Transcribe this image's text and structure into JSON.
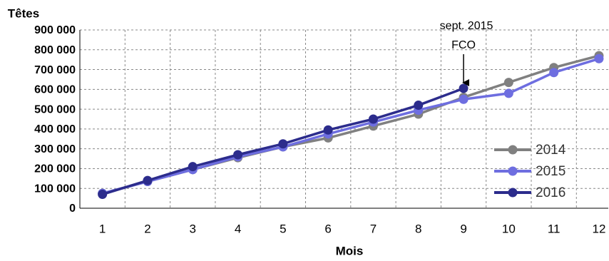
{
  "chart_data": {
    "type": "line",
    "title": "Têtes",
    "x_label": "Mois",
    "categories": [
      "1",
      "2",
      "3",
      "4",
      "5",
      "6",
      "7",
      "8",
      "9",
      "10",
      "11",
      "12"
    ],
    "series": [
      {
        "name": "2014",
        "color": "#808080",
        "values": [
          75000,
          135000,
          195000,
          255000,
          310000,
          355000,
          415000,
          475000,
          560000,
          635000,
          710000,
          770000
        ]
      },
      {
        "name": "2015",
        "color": "#6e6ee0",
        "values": [
          75000,
          135000,
          195000,
          260000,
          310000,
          375000,
          435000,
          495000,
          550000,
          580000,
          685000,
          755000
        ]
      },
      {
        "name": "2016",
        "color": "#2c2c8c",
        "values": [
          70000,
          140000,
          210000,
          270000,
          325000,
          395000,
          450000,
          520000,
          605000,
          null,
          null,
          null
        ]
      }
    ],
    "ylim": [
      0,
      900000
    ],
    "yticks": [
      0,
      {
        "value": 100000,
        "label": "100 000"
      },
      {
        "value": 200000,
        "label": "200 000"
      },
      {
        "value": 300000,
        "label": "300 000"
      },
      {
        "value": 400000,
        "label": "400 000"
      },
      {
        "value": 500000,
        "label": "500 000"
      },
      {
        "value": 600000,
        "label": "600 000"
      },
      {
        "value": 700000,
        "label": "700 000"
      },
      {
        "value": 800000,
        "label": "800 000"
      },
      {
        "value": 900000,
        "label": "900 000"
      }
    ],
    "grid": true,
    "annotation": [
      "sept. 2015",
      "FCO"
    ]
  }
}
